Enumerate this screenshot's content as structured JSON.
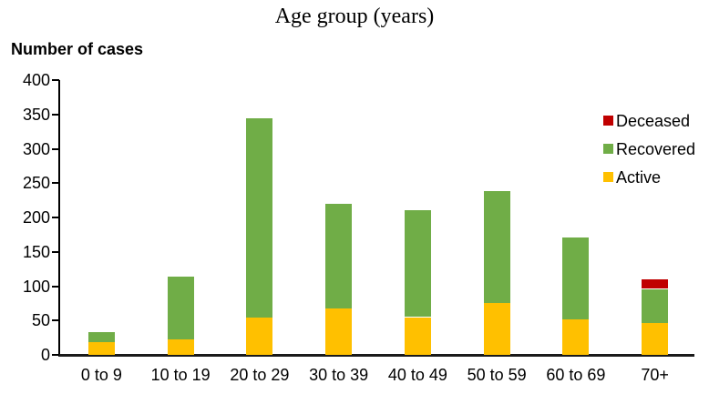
{
  "chart_data": {
    "type": "bar",
    "stacked": true,
    "title": "Age group (years)",
    "ylabel": "Number of cases",
    "categories": [
      "0 to 9",
      "10 to 19",
      "20 to 29",
      "30 to 39",
      "40 to 49",
      "50 to 59",
      "60 to 69",
      "70+"
    ],
    "series": [
      {
        "name": "Active",
        "color": "#FFC000",
        "values": [
          19,
          22,
          54,
          67,
          55,
          76,
          52,
          47
        ]
      },
      {
        "name": "Recovered",
        "color": "#70AD47",
        "values": [
          14,
          92,
          291,
          153,
          156,
          163,
          119,
          49
        ]
      },
      {
        "name": "Deceased",
        "color": "#C00000",
        "values": [
          0,
          0,
          0,
          0,
          0,
          0,
          0,
          14
        ]
      }
    ],
    "ylim": [
      0,
      400
    ],
    "yticks": [
      0,
      50,
      100,
      150,
      200,
      250,
      300,
      350,
      400
    ],
    "grid": false,
    "axis_color": "#000000",
    "legend": {
      "position": "right",
      "items": [
        {
          "label": "Deceased",
          "color": "#C00000"
        },
        {
          "label": "Recovered",
          "color": "#70AD47"
        },
        {
          "label": "Active",
          "color": "#FFC000"
        }
      ]
    }
  }
}
